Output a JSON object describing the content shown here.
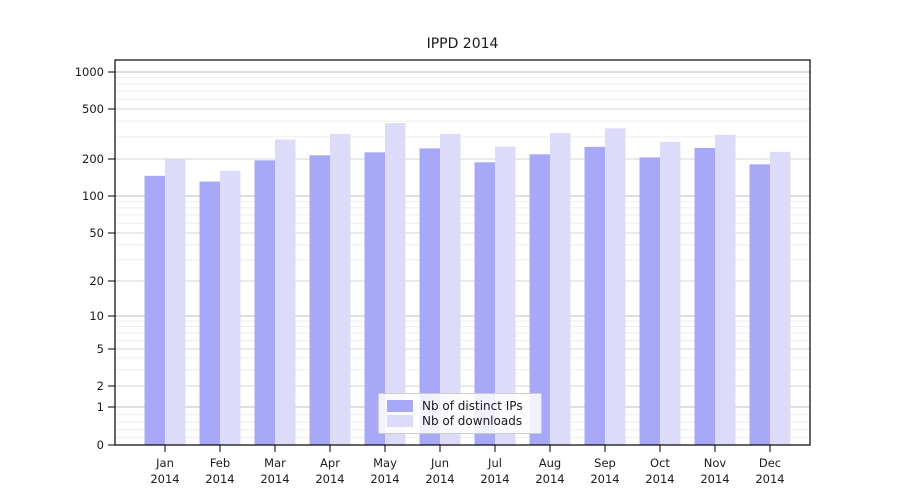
{
  "chart_data": {
    "type": "bar",
    "title": "IPPD 2014",
    "categories": [
      "Jan 2014",
      "Feb 2014",
      "Mar 2014",
      "Apr 2014",
      "May 2014",
      "Jun 2014",
      "Jul 2014",
      "Aug 2014",
      "Sep 2014",
      "Oct 2014",
      "Nov 2014",
      "Dec 2014"
    ],
    "series": [
      {
        "name": "Nb of distinct IPs",
        "color": "#a8a8f8",
        "values": [
          146,
          131,
          195,
          214,
          226,
          243,
          188,
          218,
          250,
          206,
          245,
          181
        ]
      },
      {
        "name": "Nb of downloads",
        "color": "#dcdcfa",
        "values": [
          198,
          160,
          286,
          316,
          386,
          316,
          251,
          322,
          351,
          274,
          312,
          228
        ]
      }
    ],
    "y_ticks": [
      0,
      1,
      2,
      5,
      10,
      20,
      50,
      100,
      200,
      500,
      1000
    ],
    "y_scale": "symlog",
    "ylim": [
      0,
      1250
    ],
    "xlabel": "",
    "ylabel": "",
    "grid": true,
    "legend_position": "lower center",
    "axis_color": "#000000",
    "major_grid_color": "#bdbdbd",
    "mid_grid_color": "#d6d6d6",
    "minor_grid_color": "#ededed"
  }
}
